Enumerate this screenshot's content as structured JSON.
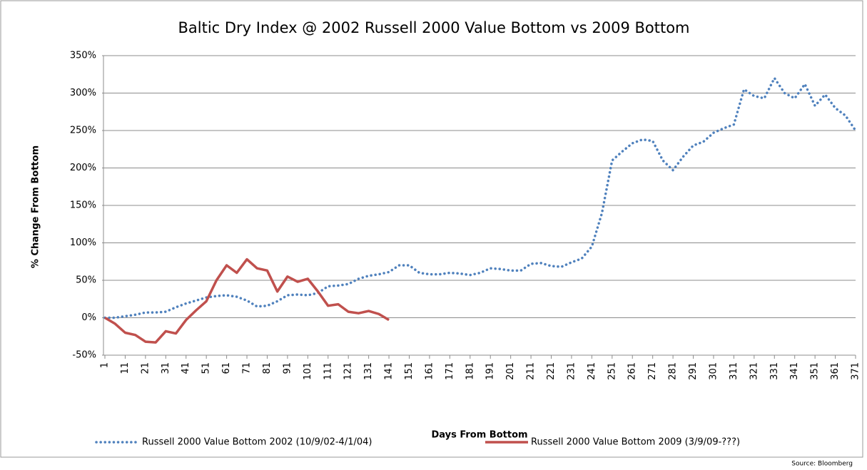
{
  "chart_data": {
    "type": "line",
    "title": "Baltic Dry Index @ 2002 Russell 2000 Value Bottom vs 2009 Bottom",
    "x_label": "Days From Bottom",
    "y_label": "% Change From Bottom",
    "source": "Source: Bloomberg",
    "x": [
      1,
      6,
      11,
      16,
      21,
      26,
      31,
      36,
      41,
      46,
      51,
      56,
      61,
      66,
      71,
      76,
      81,
      86,
      91,
      96,
      101,
      106,
      111,
      116,
      121,
      126,
      131,
      136,
      141,
      146,
      151,
      156,
      161,
      166,
      171,
      176,
      181,
      186,
      191,
      196,
      201,
      206,
      211,
      216,
      221,
      226,
      231,
      236,
      241,
      246,
      251,
      256,
      261,
      266,
      271,
      276,
      281,
      286,
      291,
      296,
      301,
      306,
      311,
      316,
      321,
      326,
      331,
      336,
      341,
      346,
      351,
      356,
      361,
      366,
      371
    ],
    "series": [
      {
        "name": "Russell 2000 Value Bottom  2002 (10/9/02-4/1/04)",
        "color": "#4f81bd",
        "dash": true,
        "values": [
          0,
          0,
          2,
          4,
          7,
          7,
          8,
          14,
          19,
          23,
          27,
          29,
          30,
          28,
          23,
          15,
          16,
          22,
          30,
          31,
          30,
          33,
          42,
          43,
          45,
          52,
          56,
          58,
          61,
          70,
          70,
          60,
          58,
          58,
          60,
          59,
          57,
          60,
          66,
          65,
          63,
          63,
          72,
          73,
          69,
          68,
          74,
          79,
          95,
          140,
          210,
          222,
          233,
          238,
          236,
          210,
          197,
          215,
          230,
          235,
          247,
          253,
          258,
          305,
          296,
          293,
          320,
          300,
          293,
          312,
          283,
          298,
          280,
          270,
          250
        ]
      },
      {
        "name": "Russell 2000 Value Bottom  2009 (3/9/09-???)",
        "color": "#c0504d",
        "dash": false,
        "values": [
          0,
          -8,
          -20,
          -23,
          -32,
          -33,
          -18,
          -21,
          -3,
          10,
          22,
          50,
          70,
          60,
          78,
          66,
          63,
          35,
          55,
          48,
          52,
          35,
          16,
          18,
          8,
          6,
          9,
          5,
          -3,
          null,
          null,
          null,
          null,
          null,
          null,
          null,
          null,
          null,
          null,
          null,
          null,
          null,
          null,
          null,
          null,
          null,
          null,
          null,
          null,
          null,
          null,
          null,
          null,
          null,
          null,
          null,
          null,
          null,
          null,
          null,
          null,
          null,
          null,
          null,
          null,
          null,
          null,
          null,
          null,
          null,
          null,
          null,
          null,
          null,
          null
        ]
      }
    ],
    "xlim": [
      1,
      371
    ],
    "xticks": [
      1,
      11,
      21,
      31,
      41,
      51,
      61,
      71,
      81,
      91,
      101,
      111,
      121,
      131,
      141,
      151,
      161,
      171,
      181,
      191,
      201,
      211,
      221,
      231,
      241,
      251,
      261,
      271,
      281,
      291,
      301,
      311,
      321,
      331,
      341,
      351,
      361,
      371
    ],
    "ylim": [
      -50,
      350
    ],
    "yticks": [
      {
        "value": -50,
        "label": "-50%"
      },
      {
        "value": 0,
        "label": "0%"
      },
      {
        "value": 50,
        "label": "50%"
      },
      {
        "value": 100,
        "label": "100%"
      },
      {
        "value": 150,
        "label": "150%"
      },
      {
        "value": 200,
        "label": "200%"
      },
      {
        "value": 250,
        "label": "250%"
      },
      {
        "value": 300,
        "label": "300%"
      },
      {
        "value": 350,
        "label": "350%"
      }
    ],
    "grid": true
  }
}
